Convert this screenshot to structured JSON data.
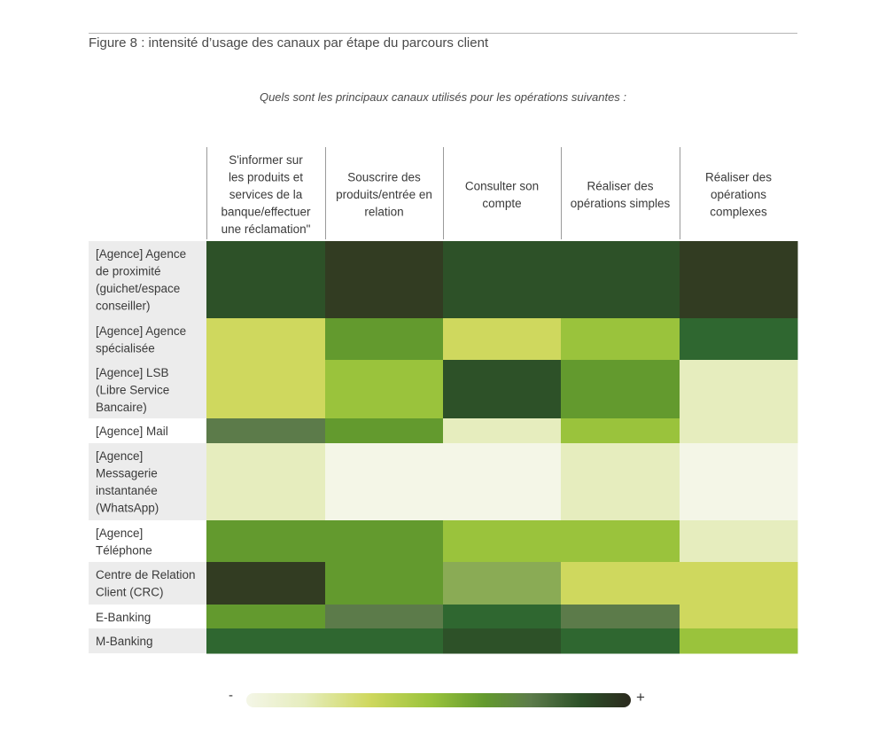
{
  "figure_title": "Figure 8 : intensité d’usage des canaux par étape du parcours client",
  "chart_data": {
    "type": "heatmap",
    "subtitle": "Quels sont les principaux canaux utilisés pour les opérations suivantes :",
    "columns": [
      "S'informer sur les produits et services de la banque/effectuer une réclamation\"",
      "Souscrire des produits/entrée en relation",
      "Consulter son compte",
      "Réaliser des opérations simples",
      "Réaliser des opérations complexes"
    ],
    "rows": [
      "[Agence] Agence de proximité (guichet/espace conseiller)",
      "[Agence] Agence spécialisée",
      "[Agence] LSB (Libre Service Bancaire)",
      "[Agence] Mail",
      "[Agence] Messagerie instantanée (WhatsApp)",
      "[Agence] Téléphone",
      "Centre de Relation Client (CRC)",
      "E-Banking",
      "M-Banking"
    ],
    "intensity_scale": [
      1,
      8
    ],
    "values": [
      [
        7,
        8,
        7,
        7,
        8
      ],
      [
        3,
        5,
        3,
        4,
        6
      ],
      [
        3,
        4,
        7,
        5,
        2
      ],
      [
        5,
        5,
        2,
        4,
        2
      ],
      [
        2,
        1,
        1,
        2,
        1
      ],
      [
        5,
        5,
        4,
        4,
        2
      ],
      [
        8,
        5,
        4,
        3,
        3
      ],
      [
        5,
        5,
        6,
        5,
        3
      ],
      [
        6,
        6,
        7,
        6,
        4
      ]
    ],
    "colors": {
      "1": "#f4f6e7",
      "2": "#e6edbe",
      "3": "#cfd85e",
      "4": "#9ac33c",
      "5": "#639a2e",
      "6": "#2f6730",
      "7": "#2d5128",
      "8": "#323c22",
      "5b": "#5c7b4a",
      "4b": "#8aab55"
    },
    "cell_colors": [
      [
        "#2d5128",
        "#323c22",
        "#2d5128",
        "#2d5128",
        "#323c22"
      ],
      [
        "#cfd85e",
        "#639a2e",
        "#cfd85e",
        "#9ac33c",
        "#2f6730"
      ],
      [
        "#cfd85e",
        "#9ac33c",
        "#2d5128",
        "#639a2e",
        "#e6edbe"
      ],
      [
        "#5c7b4a",
        "#639a2e",
        "#e6edbe",
        "#9ac33c",
        "#e6edbe"
      ],
      [
        "#e6edbe",
        "#f4f6e7",
        "#f4f6e7",
        "#e6edbe",
        "#f4f6e7"
      ],
      [
        "#639a2e",
        "#639a2e",
        "#9ac33c",
        "#9ac33c",
        "#e6edbe"
      ],
      [
        "#323c22",
        "#639a2e",
        "#8aab55",
        "#cfd85e",
        "#cfd85e"
      ],
      [
        "#639a2e",
        "#5c7b4a",
        "#2f6730",
        "#5c7b4a",
        "#cfd85e"
      ],
      [
        "#2f6730",
        "#2f6730",
        "#2d5128",
        "#2f6730",
        "#9ac33c"
      ]
    ],
    "header_lines": [
      [
        "S'informer sur",
        "les produits et",
        "services de la",
        "banque/effectuer",
        "une réclamation\""
      ],
      [
        "Souscrire des",
        "produits/entrée en",
        "relation"
      ],
      [
        "Consulter son",
        "compte"
      ],
      [
        "Réaliser des",
        "opérations simples"
      ],
      [
        "Réaliser des",
        "opérations",
        "complexes"
      ]
    ],
    "row_lines": [
      [
        "[Agence] Agence",
        "de proximité",
        "(guichet/espace",
        "conseiller)"
      ],
      [
        "[Agence] Agence",
        "spécialisée"
      ],
      [
        "[Agence] LSB",
        "(Libre Service",
        "Bancaire)"
      ],
      [
        "[Agence] Mail"
      ],
      [
        "[Agence]",
        "Messagerie",
        "instantanée",
        "(WhatsApp)"
      ],
      [
        "[Agence]",
        "Téléphone"
      ],
      [
        "Centre de Relation",
        "Client (CRC)"
      ],
      [
        "E-Banking"
      ],
      [
        "M-Banking"
      ]
    ],
    "legend": {
      "low_label": "-",
      "high_label": "+"
    }
  }
}
